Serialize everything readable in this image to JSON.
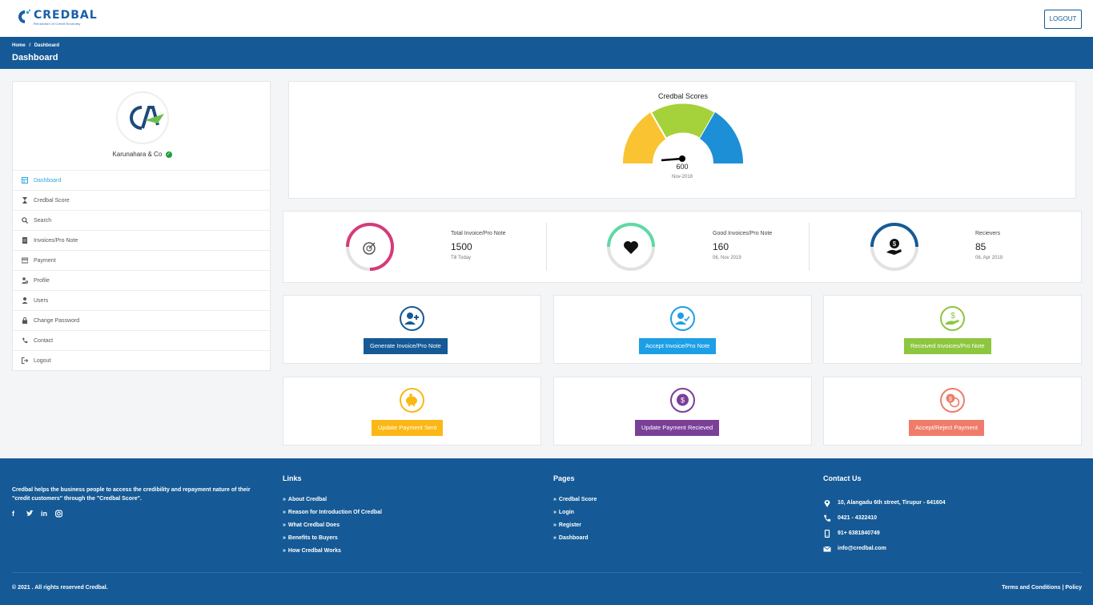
{
  "brand": {
    "name": "CREDBAL",
    "tagline": "Revolution of Credit Economy"
  },
  "header": {
    "logout_label": "LOGOUT"
  },
  "breadcrumb": {
    "home": "Home",
    "separator": "/",
    "current": "Dashboard",
    "title": "Dashboard"
  },
  "profile": {
    "org_name": "Karunahara & Co",
    "verified_icon": "check-circle-icon"
  },
  "sidebar": {
    "items": [
      {
        "label": "Dashboard",
        "icon": "dashboard-icon",
        "active": true
      },
      {
        "label": "Credbal Score",
        "icon": "hourglass-icon"
      },
      {
        "label": "Search",
        "icon": "search-icon"
      },
      {
        "label": "Invoices/Pro Note",
        "icon": "document-icon"
      },
      {
        "label": "Payment",
        "icon": "credit-card-icon"
      },
      {
        "label": "Profile",
        "icon": "user-cog-icon"
      },
      {
        "label": "Users",
        "icon": "user-icon"
      },
      {
        "label": "Change Password",
        "icon": "lock-icon"
      },
      {
        "label": "Contact",
        "icon": "phone-icon"
      },
      {
        "label": "Logout",
        "icon": "logout-icon"
      }
    ]
  },
  "score": {
    "title": "Credbal Scores",
    "value": "600",
    "date": "Nov-2018",
    "colors": [
      "#f9c332",
      "#a5d13a",
      "#1d8fd6"
    ]
  },
  "stats": [
    {
      "label": "Total Invoice/Pro Note",
      "value": "1500",
      "sub": "Till Today",
      "icon": "target-icon",
      "color": "#d63b7a",
      "progress": 0.5
    },
    {
      "label": "Good Invoices/Pro Note",
      "value": "160",
      "sub": "06, Nov 2019",
      "icon": "heart-icon",
      "color": "#5fd9a4",
      "progress": 0.33
    },
    {
      "label": "Recievers",
      "value": "85",
      "sub": "06, Apr 2019",
      "icon": "money-hand-icon",
      "color": "#155a96",
      "progress": 0.25
    }
  ],
  "actions": [
    {
      "label": "Generate Invoice/Pro Note",
      "icon": "user-plus-icon",
      "color": "#155a96"
    },
    {
      "label": "Accept Invoice/Pro Note",
      "icon": "user-check-icon",
      "color": "#1d9fe6"
    },
    {
      "label": "Received Invoices/Pro Note",
      "icon": "hand-dollar-icon",
      "color": "#8dc63f"
    },
    {
      "label": "Update Payment Sent",
      "icon": "piggy-bank-icon",
      "color": "#fbb715"
    },
    {
      "label": "Update Payment Recieved",
      "icon": "dollar-chat-icon",
      "color": "#7b3f98"
    },
    {
      "label": "Accept/Reject Payment",
      "icon": "dollar-chats-icon",
      "color": "#ef7c6a"
    }
  ],
  "footer": {
    "about": "Credbal helps the business people to access the credibility and repayment nature of their \"credit customers\" through the \"Credbal Score\".",
    "socials": [
      "facebook-icon",
      "twitter-icon",
      "linkedin-icon",
      "instagram-icon"
    ],
    "links_title": "Links",
    "links": [
      "About Credbal",
      "Reason for Introduction Of Credbal",
      "What Credbal Does",
      "Benefits to Buyers",
      "How Credbal Works"
    ],
    "pages_title": "Pages",
    "pages": [
      "Credbal Score",
      "Login",
      "Register",
      "Dashboard"
    ],
    "contact_title": "Contact Us",
    "contacts": [
      {
        "icon": "location-icon",
        "text": "10, Alangadu 6th street, Tirupur - 641604"
      },
      {
        "icon": "phone-icon",
        "text": "0421 - 4322410"
      },
      {
        "icon": "mobile-icon",
        "text": "91+ 6381840749"
      },
      {
        "icon": "mail-icon",
        "text": "info@credbal.com"
      }
    ],
    "copyright": "© 2021 . All rights reserved Credbal.",
    "terms": "Terms and Conditions | Policy"
  }
}
